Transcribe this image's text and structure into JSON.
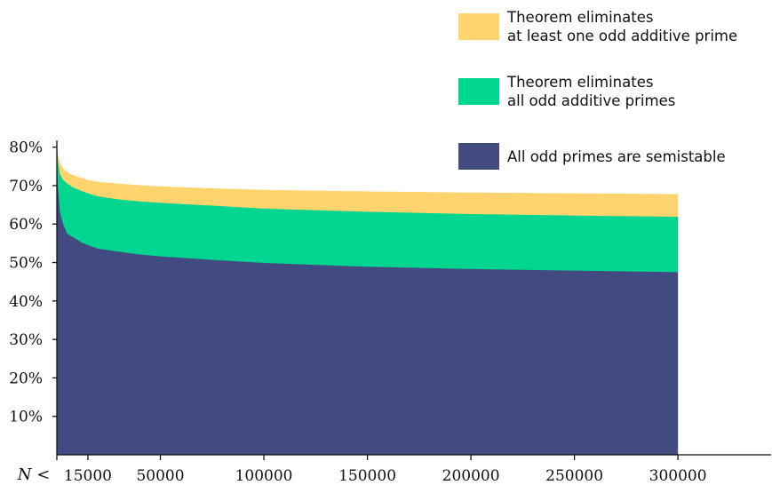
{
  "chart_data": {
    "type": "area",
    "stacked": true,
    "x_prefix_label": "N <",
    "x_ticks": [
      15000,
      50000,
      100000,
      150000,
      200000,
      250000,
      300000
    ],
    "y_ticks": [
      "10%",
      "20%",
      "30%",
      "40%",
      "50%",
      "60%",
      "70%",
      "80%"
    ],
    "y_tick_values": [
      10,
      20,
      30,
      40,
      50,
      60,
      70,
      80
    ],
    "xlim": [
      0,
      345000
    ],
    "ylim": [
      0,
      82
    ],
    "grid": false,
    "legend_position": "top-right",
    "x": [
      0,
      500,
      1500,
      3000,
      5000,
      8000,
      12000,
      15000,
      20000,
      30000,
      40000,
      50000,
      75000,
      100000,
      150000,
      200000,
      250000,
      300000
    ],
    "series": [
      {
        "name": "All odd primes are semistable",
        "color": "#424a82",
        "values": [
          81,
          70,
          63,
          60,
          57.5,
          56.5,
          55.2,
          54.5,
          53.6,
          52.8,
          52.1,
          51.6,
          50.7,
          49.9,
          48.9,
          48.3,
          47.9,
          47.5
        ]
      },
      {
        "name": "Theorem eliminates all odd additive primes",
        "color": "#00d68f",
        "values": [
          81,
          76.5,
          73,
          71.5,
          70.5,
          69.5,
          68.6,
          68,
          67.2,
          66.4,
          65.9,
          65.5,
          64.8,
          64,
          63.2,
          62.6,
          62.2,
          61.9
        ]
      },
      {
        "name": "Theorem eliminates at least one odd additive prime",
        "color": "#ffd36e",
        "values": [
          82,
          78,
          76,
          74.5,
          73.5,
          72.7,
          72,
          71.5,
          71,
          70.5,
          70.1,
          69.8,
          69.3,
          68.9,
          68.5,
          68.2,
          68,
          67.8
        ]
      }
    ],
    "legend": [
      {
        "lines": [
          "Theorem eliminates",
          "at least one odd additive prime"
        ],
        "color": "#ffd36e"
      },
      {
        "lines": [
          "Theorem eliminates",
          "all odd additive primes"
        ],
        "color": "#00d68f"
      },
      {
        "lines": [
          "All odd primes are semistable"
        ],
        "color": "#424a82"
      }
    ]
  }
}
